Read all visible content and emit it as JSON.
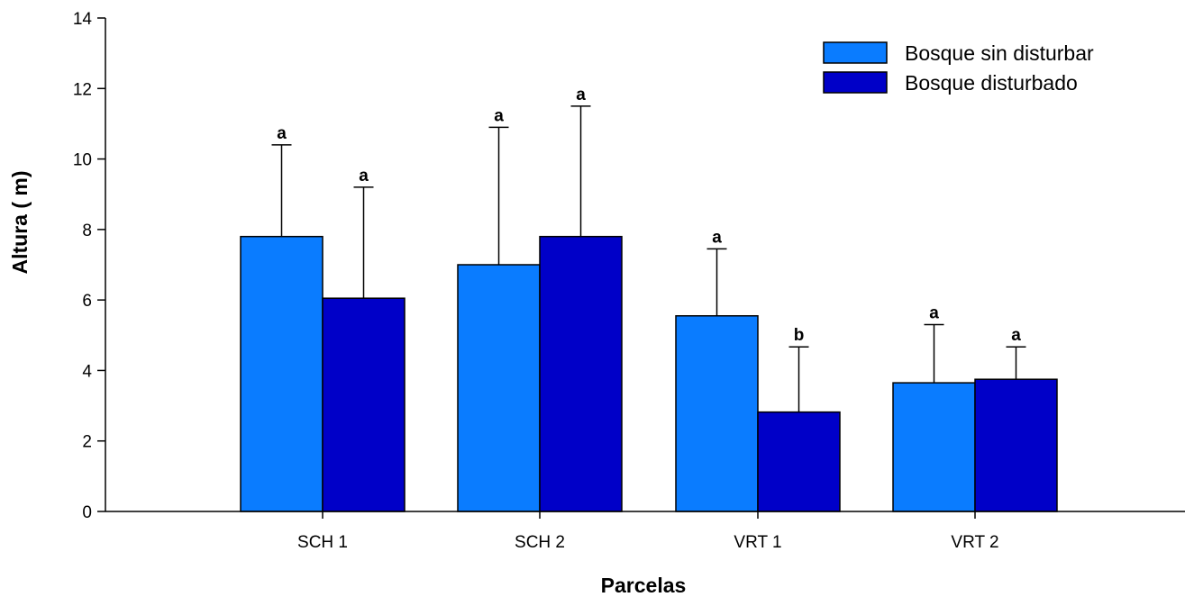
{
  "chart_data": {
    "type": "bar",
    "title": "",
    "xlabel": "Parcelas",
    "ylabel": "Altura ( m)",
    "ylim": [
      0,
      14
    ],
    "yticks": [
      "0",
      "2",
      "4",
      "6",
      "8",
      "10",
      "12",
      "14"
    ],
    "categories": [
      "SCH 1",
      "SCH 2",
      "VRT 1",
      "VRT 2"
    ],
    "series": [
      {
        "name": "Bosque sin disturbar",
        "color": "#0a7cff",
        "values": [
          7.8,
          7.0,
          5.55,
          3.65
        ],
        "error": [
          2.6,
          3.9,
          1.9,
          1.65
        ],
        "labels": [
          "a",
          "a",
          "a",
          "a"
        ]
      },
      {
        "name": "Bosque disturbado",
        "color": "#0000c8",
        "values": [
          6.05,
          7.8,
          2.82,
          3.75
        ],
        "error": [
          3.15,
          3.7,
          1.85,
          0.92
        ],
        "labels": [
          "a",
          "a",
          "b",
          "a"
        ]
      }
    ],
    "legend_position": "top-right",
    "grid": false
  }
}
